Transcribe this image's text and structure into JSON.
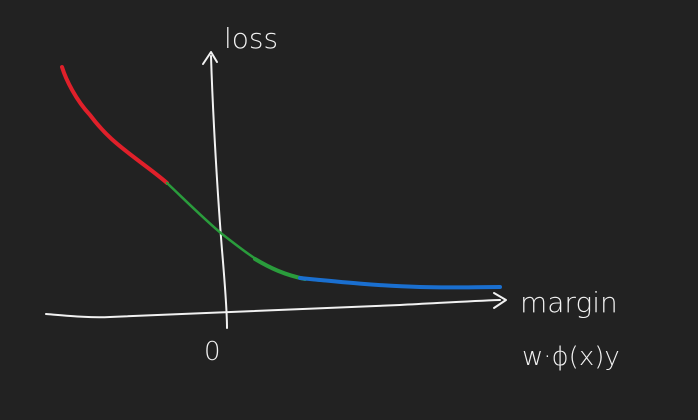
{
  "diagram": {
    "y_axis_label": "loss",
    "x_axis_label": "margin",
    "x_axis_sublabel": "w·ϕ(x)y",
    "origin_label": "0",
    "colors": {
      "background": "#222222",
      "axes": "#f2f2f2",
      "curve_left": "#e0202a",
      "curve_middle": "#2a9c3c",
      "curve_right": "#1a6fd0"
    }
  }
}
